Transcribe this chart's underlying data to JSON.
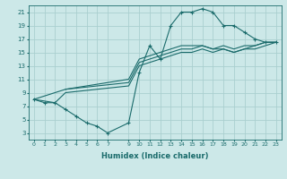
{
  "title": "",
  "xlabel": "Humidex (Indice chaleur)",
  "bg_color": "#cce8e8",
  "grid_color": "#aacfcf",
  "line_color": "#1a6b6b",
  "xlim": [
    -0.5,
    23.5
  ],
  "ylim": [
    2,
    22
  ],
  "xticks": [
    0,
    1,
    2,
    3,
    4,
    5,
    6,
    7,
    9,
    10,
    11,
    12,
    13,
    14,
    15,
    16,
    17,
    18,
    19,
    20,
    21,
    22,
    23
  ],
  "yticks": [
    3,
    5,
    7,
    9,
    11,
    13,
    15,
    17,
    19,
    21
  ],
  "line1_x": [
    0,
    1,
    2,
    3,
    4,
    5,
    6,
    7,
    9,
    10,
    11,
    12,
    13,
    14,
    15,
    16,
    17,
    18,
    19,
    20,
    21,
    22,
    23
  ],
  "line1_y": [
    8,
    7.5,
    7.5,
    6.5,
    5.5,
    4.5,
    4,
    3,
    4.5,
    12,
    16,
    14,
    19,
    21,
    21,
    21.5,
    21,
    19,
    19,
    18,
    17,
    16.5,
    16.5
  ],
  "line2_x": [
    0,
    2,
    3,
    9,
    10,
    11,
    12,
    13,
    14,
    15,
    16,
    17,
    18,
    19,
    20,
    21,
    22,
    23
  ],
  "line2_y": [
    8,
    7.5,
    9,
    10,
    13,
    13.5,
    14,
    14.5,
    15,
    15,
    15.5,
    15,
    15.5,
    15,
    15.5,
    15.5,
    16,
    16.5
  ],
  "line3_x": [
    0,
    3,
    9,
    10,
    11,
    12,
    13,
    14,
    15,
    16,
    17,
    18,
    19,
    20,
    21,
    22,
    23
  ],
  "line3_y": [
    8,
    9.5,
    10.5,
    13.5,
    14,
    14.5,
    15,
    15.5,
    15.5,
    16,
    15.5,
    16,
    15.5,
    16,
    16,
    16.5,
    16.5
  ],
  "line4_x": [
    3,
    9,
    10,
    11,
    12,
    13,
    14,
    15,
    16,
    17,
    18,
    19,
    20,
    21,
    22,
    23
  ],
  "line4_y": [
    9.5,
    11,
    14,
    14.5,
    15,
    15.5,
    16,
    16,
    16,
    15.5,
    15.5,
    15,
    15.5,
    16,
    16.5,
    16.5
  ]
}
